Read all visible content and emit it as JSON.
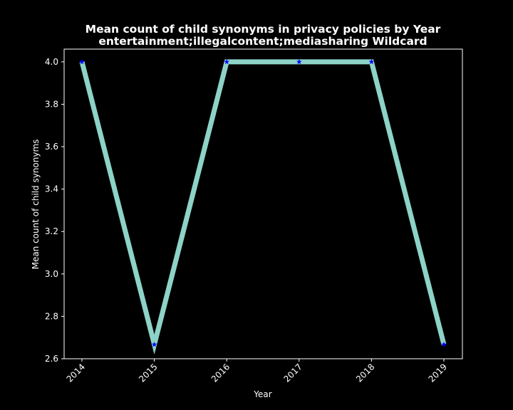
{
  "chart_data": {
    "type": "line",
    "title": "Mean count of child synonyms in privacy policies by Year",
    "subtitle": "entertainment;illegalcontent;mediasharing Wildcard",
    "xlabel": "Year",
    "ylabel": "Mean count of child synonyms",
    "x": [
      "2014",
      "2015",
      "2016",
      "2017",
      "2018",
      "2019"
    ],
    "series": [
      {
        "values": [
          4.0,
          2.667,
          4.0,
          4.0,
          4.0,
          2.667
        ]
      }
    ],
    "ylim": [
      2.6,
      4.06
    ],
    "yticks": [
      2.6,
      2.8,
      3.0,
      3.2,
      3.4,
      3.6,
      3.8,
      4.0
    ],
    "ytick_labels": [
      "2.6",
      "2.8",
      "3.0",
      "3.2",
      "3.4",
      "3.6",
      "3.8",
      "4.0"
    ],
    "grid": false,
    "line_color": "#8dd3c7",
    "marker": "star",
    "marker_color": "#0000ff",
    "background": "#000000",
    "foreground": "#ffffff"
  }
}
